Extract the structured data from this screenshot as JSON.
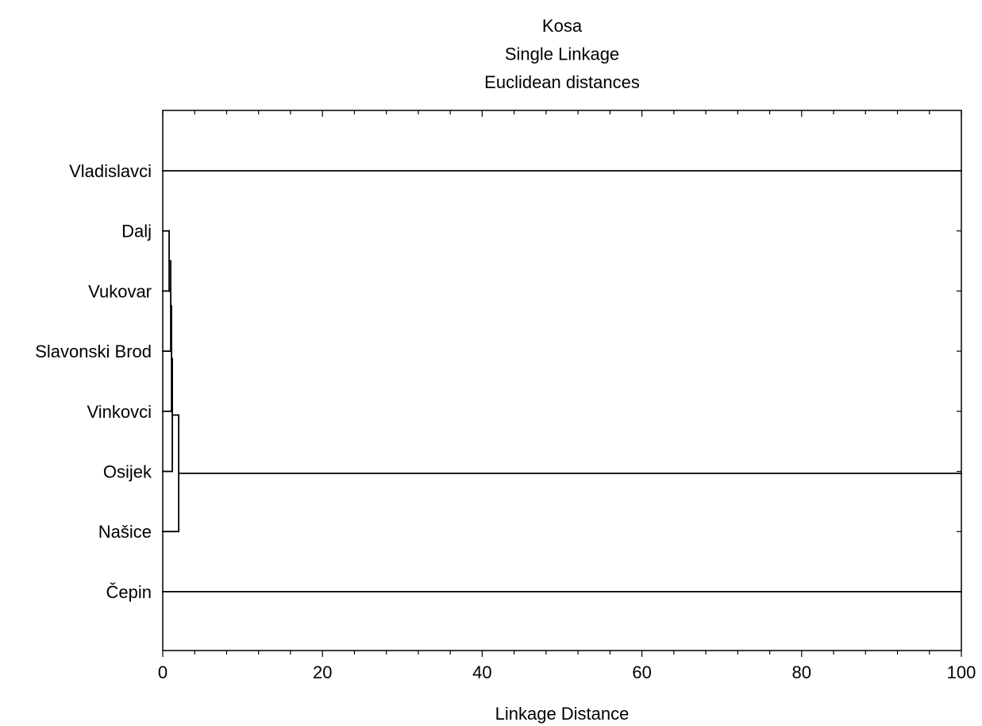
{
  "chart_data": {
    "type": "dendrogram",
    "title": [
      "Kosa",
      "Single Linkage",
      "Euclidean distances"
    ],
    "xlabel": "Linkage Distance",
    "ylabel": "",
    "xlim": [
      0,
      100
    ],
    "x_ticks": [
      0,
      20,
      40,
      60,
      80,
      100
    ],
    "x_minor_step": 4,
    "orientation": "horizontal",
    "grid": false,
    "leaves": [
      "Vladislavci",
      "Dalj",
      "Vukovar",
      "Slavonski Brod",
      "Vinkovci",
      "Osijek",
      "Našice",
      "Čepin"
    ],
    "merges": [
      {
        "a": "Dalj",
        "b": "Vukovar",
        "distance": 0.8
      },
      {
        "a": "Dalj+Vukovar",
        "b": "Slavonski Brod",
        "distance": 1.0
      },
      {
        "a": "Dalj+Vukovar+Slavonski Brod",
        "b": "Vinkovci",
        "distance": 1.1
      },
      {
        "a": "Dalj+Vukovar+Slavonski Brod+Vinkovci",
        "b": "Osijek",
        "distance": 1.2
      },
      {
        "a": "Dalj+Vukovar+Slavonski Brod+Vinkovci+Osijek",
        "b": "Našice",
        "distance": 2.0
      }
    ],
    "unmerged_lines": [
      {
        "from": "Vladislavci",
        "to_distance": 100
      },
      {
        "from": "Dalj+Vukovar+Slavonski Brod+Vinkovci+Osijek+Našice",
        "to_distance": 100
      },
      {
        "from": "Čepin",
        "to_distance": 100
      }
    ]
  }
}
